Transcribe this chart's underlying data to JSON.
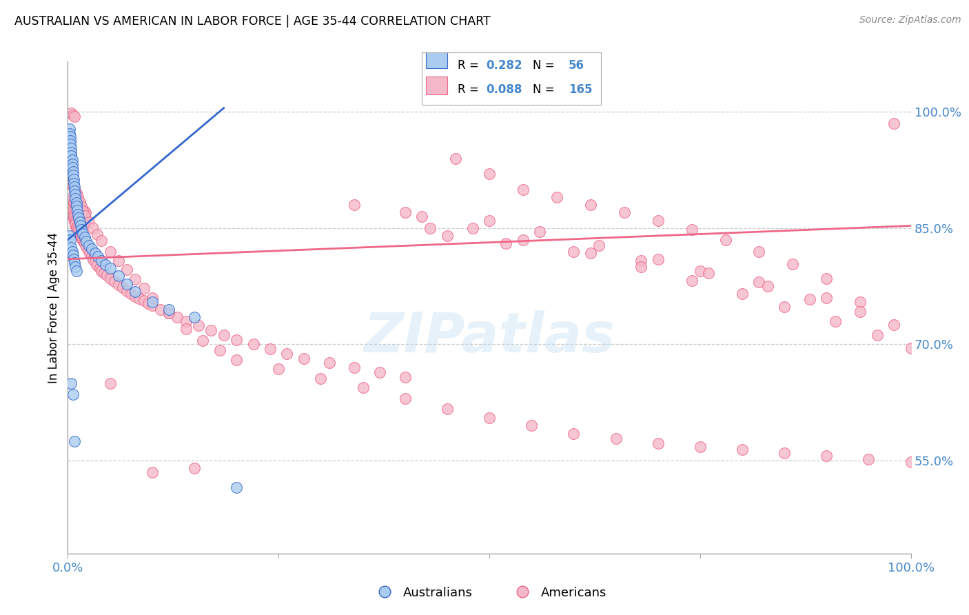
{
  "title": "AUSTRALIAN VS AMERICAN IN LABOR FORCE | AGE 35-44 CORRELATION CHART",
  "source": "Source: ZipAtlas.com",
  "ylabel": "In Labor Force | Age 35-44",
  "australian_color": "#aaccf0",
  "american_color": "#f5b8c8",
  "aus_line_color": "#3366cc",
  "ame_line_color": "#ee6688",
  "background_color": "#ffffff",
  "grid_color": "#cccccc",
  "legend_R_aus": "0.282",
  "legend_N_aus": "56",
  "legend_R_ame": "0.088",
  "legend_N_ame": "165",
  "tick_color": "#4488cc",
  "xlim": [
    0.0,
    1.0
  ],
  "ylim": [
    0.43,
    1.065
  ],
  "ytick_positions": [
    0.55,
    0.7,
    0.85,
    1.0
  ],
  "ytick_labels": [
    "55.0%",
    "70.0%",
    "85.0%",
    "100.0%"
  ],
  "xtick_positions": [
    0.0,
    0.25,
    0.5,
    0.75,
    1.0
  ],
  "xtick_labels": [
    "0.0%",
    "",
    "",
    "",
    "100.0%"
  ],
  "aus_scatter_x": [
    0.002,
    0.002,
    0.003,
    0.003,
    0.003,
    0.004,
    0.004,
    0.004,
    0.005,
    0.005,
    0.005,
    0.006,
    0.006,
    0.007,
    0.007,
    0.008,
    0.008,
    0.009,
    0.009,
    0.01,
    0.01,
    0.011,
    0.012,
    0.013,
    0.014,
    0.015,
    0.016,
    0.018,
    0.02,
    0.022,
    0.025,
    0.028,
    0.032,
    0.036,
    0.04,
    0.045,
    0.05,
    0.06,
    0.07,
    0.08,
    0.1,
    0.12,
    0.15,
    0.002,
    0.003,
    0.004,
    0.005,
    0.006,
    0.007,
    0.008,
    0.009,
    0.01,
    0.004,
    0.006,
    0.008,
    0.2
  ],
  "aus_scatter_y": [
    0.978,
    0.972,
    0.968,
    0.963,
    0.958,
    0.953,
    0.948,
    0.943,
    0.938,
    0.933,
    0.928,
    0.923,
    0.918,
    0.913,
    0.908,
    0.903,
    0.898,
    0.893,
    0.888,
    0.883,
    0.878,
    0.873,
    0.868,
    0.863,
    0.858,
    0.853,
    0.848,
    0.843,
    0.838,
    0.833,
    0.828,
    0.823,
    0.818,
    0.813,
    0.808,
    0.803,
    0.798,
    0.788,
    0.778,
    0.768,
    0.755,
    0.745,
    0.735,
    0.84,
    0.835,
    0.825,
    0.82,
    0.815,
    0.81,
    0.805,
    0.8,
    0.795,
    0.65,
    0.635,
    0.575,
    0.515
  ],
  "ame_scatter_x": [
    0.002,
    0.003,
    0.003,
    0.004,
    0.004,
    0.005,
    0.005,
    0.006,
    0.006,
    0.007,
    0.007,
    0.008,
    0.008,
    0.009,
    0.009,
    0.01,
    0.01,
    0.011,
    0.012,
    0.013,
    0.014,
    0.015,
    0.016,
    0.017,
    0.018,
    0.019,
    0.02,
    0.022,
    0.024,
    0.026,
    0.028,
    0.03,
    0.032,
    0.035,
    0.038,
    0.04,
    0.043,
    0.046,
    0.05,
    0.055,
    0.06,
    0.065,
    0.07,
    0.075,
    0.08,
    0.085,
    0.09,
    0.095,
    0.1,
    0.11,
    0.12,
    0.13,
    0.14,
    0.155,
    0.17,
    0.185,
    0.2,
    0.22,
    0.24,
    0.26,
    0.28,
    0.31,
    0.34,
    0.37,
    0.4,
    0.43,
    0.46,
    0.5,
    0.54,
    0.58,
    0.62,
    0.66,
    0.7,
    0.74,
    0.78,
    0.82,
    0.86,
    0.9,
    0.94,
    0.98,
    0.003,
    0.005,
    0.007,
    0.009,
    0.011,
    0.013,
    0.015,
    0.017,
    0.019,
    0.021,
    0.003,
    0.004,
    0.005,
    0.006,
    0.007,
    0.008,
    0.01,
    0.012,
    0.014,
    0.016,
    0.018,
    0.02,
    0.025,
    0.03,
    0.035,
    0.04,
    0.05,
    0.06,
    0.07,
    0.08,
    0.09,
    0.1,
    0.12,
    0.14,
    0.16,
    0.18,
    0.2,
    0.25,
    0.3,
    0.35,
    0.4,
    0.45,
    0.5,
    0.55,
    0.6,
    0.65,
    0.7,
    0.75,
    0.8,
    0.85,
    0.9,
    0.95,
    1.0,
    0.45,
    0.52,
    0.6,
    0.68,
    0.75,
    0.82,
    0.9,
    0.4,
    0.5,
    0.56,
    0.63,
    0.7,
    0.76,
    0.83,
    0.88,
    0.94,
    0.98,
    0.34,
    0.42,
    0.48,
    0.54,
    0.62,
    0.68,
    0.74,
    0.8,
    0.85,
    0.91,
    0.96,
    1.0,
    0.05,
    0.1,
    0.15,
    0.004,
    0.006,
    0.008
  ],
  "ame_scatter_y": [
    0.882,
    0.88,
    0.878,
    0.876,
    0.874,
    0.872,
    0.87,
    0.868,
    0.866,
    0.864,
    0.862,
    0.86,
    0.858,
    0.856,
    0.854,
    0.852,
    0.85,
    0.848,
    0.846,
    0.844,
    0.842,
    0.84,
    0.838,
    0.836,
    0.834,
    0.832,
    0.83,
    0.826,
    0.822,
    0.818,
    0.814,
    0.81,
    0.806,
    0.802,
    0.798,
    0.795,
    0.792,
    0.789,
    0.785,
    0.781,
    0.777,
    0.773,
    0.769,
    0.765,
    0.762,
    0.759,
    0.756,
    0.753,
    0.75,
    0.745,
    0.74,
    0.735,
    0.73,
    0.724,
    0.718,
    0.712,
    0.706,
    0.7,
    0.694,
    0.688,
    0.682,
    0.676,
    0.67,
    0.664,
    0.658,
    0.85,
    0.94,
    0.92,
    0.9,
    0.89,
    0.88,
    0.87,
    0.86,
    0.848,
    0.835,
    0.82,
    0.804,
    0.785,
    0.755,
    0.985,
    0.888,
    0.886,
    0.884,
    0.882,
    0.88,
    0.878,
    0.876,
    0.874,
    0.872,
    0.87,
    0.91,
    0.908,
    0.906,
    0.904,
    0.902,
    0.9,
    0.895,
    0.89,
    0.884,
    0.878,
    0.872,
    0.866,
    0.858,
    0.85,
    0.842,
    0.834,
    0.82,
    0.808,
    0.796,
    0.784,
    0.772,
    0.76,
    0.74,
    0.72,
    0.705,
    0.692,
    0.68,
    0.668,
    0.656,
    0.644,
    0.63,
    0.617,
    0.605,
    0.595,
    0.585,
    0.578,
    0.572,
    0.568,
    0.564,
    0.56,
    0.556,
    0.552,
    0.548,
    0.84,
    0.83,
    0.82,
    0.808,
    0.795,
    0.78,
    0.76,
    0.87,
    0.86,
    0.845,
    0.828,
    0.81,
    0.792,
    0.775,
    0.758,
    0.742,
    0.725,
    0.88,
    0.865,
    0.85,
    0.835,
    0.818,
    0.8,
    0.782,
    0.765,
    0.748,
    0.73,
    0.712,
    0.695,
    0.65,
    0.535,
    0.54,
    0.998,
    0.996,
    0.994
  ],
  "aus_trendline_x": [
    0.0,
    0.185
  ],
  "aus_trendline_y": [
    0.835,
    1.005
  ],
  "ame_trendline_x": [
    0.0,
    1.0
  ],
  "ame_trendline_y": [
    0.81,
    0.853
  ]
}
